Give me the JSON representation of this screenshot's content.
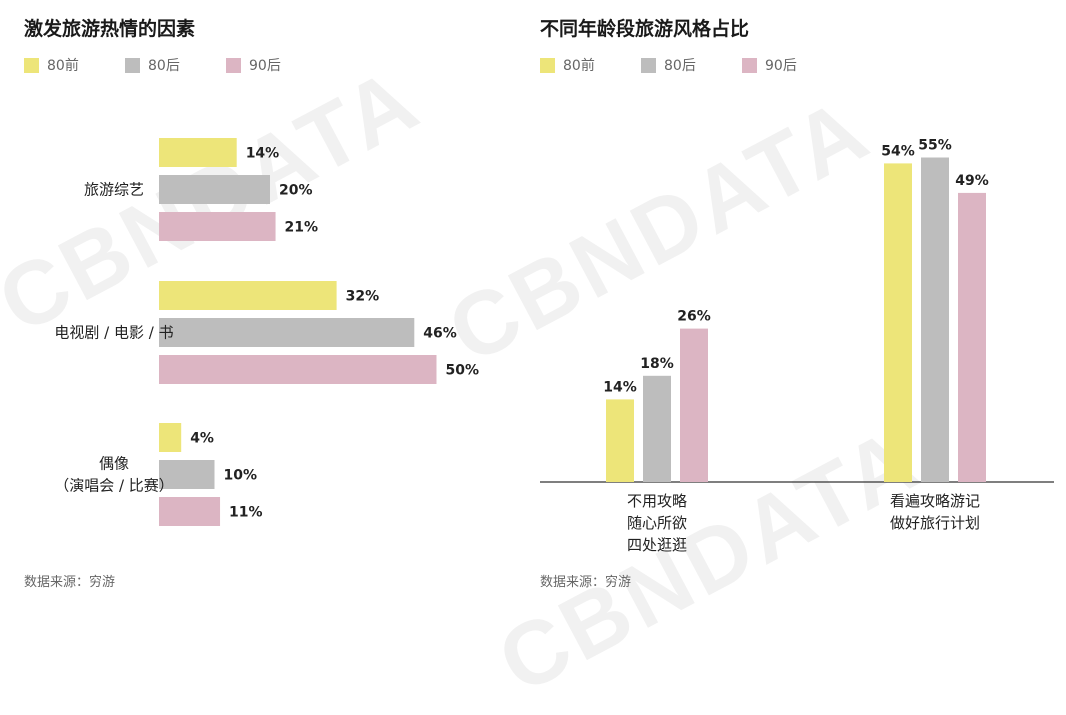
{
  "colors": {
    "pre80": "#ede579",
    "post80": "#bdbdbd",
    "post90": "#dcb5c3"
  },
  "source": "数据来源：穷游",
  "watermark": "CBNDATA",
  "chart_data": [
    {
      "type": "bar",
      "orientation": "horizontal",
      "title": "激发旅游热情的因素",
      "categories": [
        {
          "lines": [
            "旅游综艺"
          ]
        },
        {
          "lines": [
            "电视剧 / 电影 / 书"
          ]
        },
        {
          "lines": [
            "偶像",
            "（演唱会 / 比赛）"
          ]
        }
      ],
      "series": [
        {
          "name": "80前",
          "values": [
            14,
            32,
            4
          ],
          "labels": [
            "14%",
            "32%",
            "4%"
          ]
        },
        {
          "name": "80后",
          "values": [
            20,
            46,
            10
          ],
          "labels": [
            "20%",
            "46%",
            "10%"
          ]
        },
        {
          "name": "90后",
          "values": [
            21,
            50,
            11
          ],
          "labels": [
            "21%",
            "50%",
            "11%"
          ]
        }
      ],
      "unit": "%",
      "legend": "top-left",
      "grid": false
    },
    {
      "type": "bar",
      "orientation": "vertical",
      "title": "不同年龄段旅游风格占比",
      "categories": [
        {
          "lines": [
            "不用攻略",
            "随心所欲",
            "四处逛逛"
          ]
        },
        {
          "lines": [
            "看遍攻略游记",
            "做好旅行计划"
          ]
        }
      ],
      "series": [
        {
          "name": "80前",
          "values": [
            14,
            54
          ],
          "labels": [
            "14%",
            "54%"
          ]
        },
        {
          "name": "80后",
          "values": [
            18,
            55
          ],
          "labels": [
            "18%",
            "55%"
          ]
        },
        {
          "name": "90后",
          "values": [
            26,
            49
          ],
          "labels": [
            "26%",
            "49%"
          ]
        }
      ],
      "unit": "%",
      "legend": "top-left",
      "grid": false
    }
  ]
}
